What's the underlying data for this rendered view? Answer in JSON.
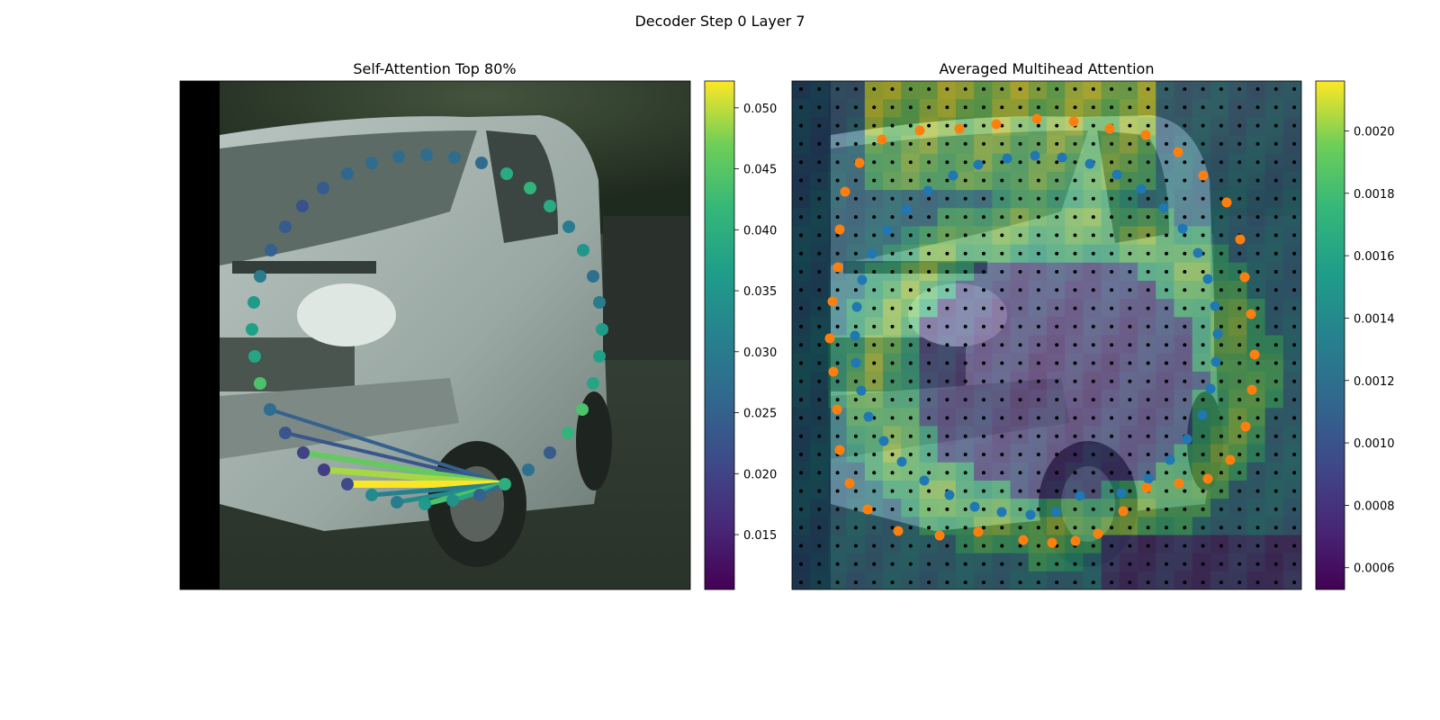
{
  "figure": {
    "suptitle": "Decoder Step 0 Layer 7"
  },
  "chart_data": [
    {
      "type": "scatter",
      "title": "Self-Attention Top 80%",
      "description_of_background": "photo of white van",
      "colormap": "viridis",
      "colorbar": {
        "min": 0.0105,
        "max": 0.0522,
        "ticks": [
          "0.015",
          "0.020",
          "0.025",
          "0.030",
          "0.035",
          "0.040",
          "0.045",
          "0.050"
        ],
        "tick_values": [
          0.015,
          0.02,
          0.025,
          0.03,
          0.035,
          0.04,
          0.045,
          0.05
        ]
      },
      "points": [
        {
          "x": 441,
          "y": 558,
          "v": 0.03
        },
        {
          "x": 472,
          "y": 560,
          "v": 0.036
        },
        {
          "x": 503,
          "y": 556,
          "v": 0.034
        },
        {
          "x": 533,
          "y": 550,
          "v": 0.025
        },
        {
          "x": 561,
          "y": 538,
          "v": 0.04
        },
        {
          "x": 587,
          "y": 522,
          "v": 0.028
        },
        {
          "x": 611,
          "y": 503,
          "v": 0.024
        },
        {
          "x": 631,
          "y": 481,
          "v": 0.041
        },
        {
          "x": 647,
          "y": 455,
          "v": 0.044
        },
        {
          "x": 659,
          "y": 426,
          "v": 0.038
        },
        {
          "x": 666,
          "y": 396,
          "v": 0.037
        },
        {
          "x": 669,
          "y": 366,
          "v": 0.036
        },
        {
          "x": 666,
          "y": 336,
          "v": 0.03
        },
        {
          "x": 659,
          "y": 307,
          "v": 0.028
        },
        {
          "x": 648,
          "y": 278,
          "v": 0.035
        },
        {
          "x": 632,
          "y": 252,
          "v": 0.03
        },
        {
          "x": 611,
          "y": 229,
          "v": 0.039
        },
        {
          "x": 589,
          "y": 209,
          "v": 0.041
        },
        {
          "x": 563,
          "y": 193,
          "v": 0.039
        },
        {
          "x": 535,
          "y": 181,
          "v": 0.027
        },
        {
          "x": 505,
          "y": 175,
          "v": 0.027
        },
        {
          "x": 474,
          "y": 172,
          "v": 0.027
        },
        {
          "x": 443,
          "y": 174,
          "v": 0.027
        },
        {
          "x": 413,
          "y": 181,
          "v": 0.027
        },
        {
          "x": 386,
          "y": 193,
          "v": 0.026
        },
        {
          "x": 359,
          "y": 209,
          "v": 0.024
        },
        {
          "x": 336,
          "y": 229,
          "v": 0.022
        },
        {
          "x": 317,
          "y": 252,
          "v": 0.024
        },
        {
          "x": 301,
          "y": 278,
          "v": 0.025
        },
        {
          "x": 289,
          "y": 307,
          "v": 0.03
        },
        {
          "x": 282,
          "y": 336,
          "v": 0.036
        },
        {
          "x": 280,
          "y": 366,
          "v": 0.037
        },
        {
          "x": 283,
          "y": 396,
          "v": 0.038
        },
        {
          "x": 289,
          "y": 426,
          "v": 0.044
        },
        {
          "x": 300,
          "y": 455,
          "v": 0.027
        },
        {
          "x": 317,
          "y": 481,
          "v": 0.023
        },
        {
          "x": 337,
          "y": 503,
          "v": 0.02
        },
        {
          "x": 360,
          "y": 522,
          "v": 0.019
        },
        {
          "x": 386,
          "y": 538,
          "v": 0.021
        },
        {
          "x": 413,
          "y": 550,
          "v": 0.033
        }
      ],
      "edges": [
        {
          "to": 34,
          "v": 0.025,
          "w": 4
        },
        {
          "to": 35,
          "v": 0.023,
          "w": 4
        },
        {
          "to": 36,
          "v": 0.046,
          "w": 6
        },
        {
          "to": 37,
          "v": 0.049,
          "w": 7
        },
        {
          "to": 38,
          "v": 0.052,
          "w": 8
        },
        {
          "to": 39,
          "v": 0.031,
          "w": 5
        },
        {
          "to": 0,
          "v": 0.033,
          "w": 5
        },
        {
          "to": 1,
          "v": 0.044,
          "w": 6
        },
        {
          "to": 2,
          "v": 0.038,
          "w": 5
        },
        {
          "to": 3,
          "v": 0.027,
          "w": 4
        }
      ],
      "edge_source": 4
    },
    {
      "type": "heatmap",
      "title": "Averaged Multihead Attention",
      "colormap": "viridis",
      "colorbar": {
        "min": 0.00053,
        "max": 0.00216,
        "ticks": [
          "0.0006",
          "0.0008",
          "0.0010",
          "0.0012",
          "0.0014",
          "0.0016",
          "0.0018",
          "0.0020"
        ],
        "tick_values": [
          0.0006,
          0.0008,
          0.001,
          0.0012,
          0.0014,
          0.0016,
          0.0018,
          0.002
        ]
      },
      "blue_points": [
        {
          "x": 1200,
          "y": 551
        },
        {
          "x": 1173,
          "y": 569
        },
        {
          "x": 1145,
          "y": 572
        },
        {
          "x": 1113,
          "y": 569
        },
        {
          "x": 1083,
          "y": 563
        },
        {
          "x": 1055,
          "y": 550
        },
        {
          "x": 1027,
          "y": 534
        },
        {
          "x": 1002,
          "y": 513
        },
        {
          "x": 982,
          "y": 490
        },
        {
          "x": 965,
          "y": 463
        },
        {
          "x": 957,
          "y": 434
        },
        {
          "x": 951,
          "y": 403
        },
        {
          "x": 950,
          "y": 373
        },
        {
          "x": 952,
          "y": 341
        },
        {
          "x": 958,
          "y": 311
        },
        {
          "x": 969,
          "y": 282
        },
        {
          "x": 986,
          "y": 256
        },
        {
          "x": 1007,
          "y": 233
        },
        {
          "x": 1031,
          "y": 212
        },
        {
          "x": 1059,
          "y": 195
        },
        {
          "x": 1087,
          "y": 183
        },
        {
          "x": 1119,
          "y": 176
        },
        {
          "x": 1150,
          "y": 173
        },
        {
          "x": 1180,
          "y": 175
        },
        {
          "x": 1211,
          "y": 182
        },
        {
          "x": 1241,
          "y": 194
        },
        {
          "x": 1268,
          "y": 210
        },
        {
          "x": 1293,
          "y": 231
        },
        {
          "x": 1314,
          "y": 254
        },
        {
          "x": 1331,
          "y": 281
        },
        {
          "x": 1342,
          "y": 310
        },
        {
          "x": 1350,
          "y": 340
        },
        {
          "x": 1353,
          "y": 371
        },
        {
          "x": 1351,
          "y": 402
        },
        {
          "x": 1345,
          "y": 432
        },
        {
          "x": 1336,
          "y": 461
        },
        {
          "x": 1319,
          "y": 488
        },
        {
          "x": 1300,
          "y": 511
        },
        {
          "x": 1276,
          "y": 532
        },
        {
          "x": 1246,
          "y": 548
        }
      ],
      "orange_points": [
        {
          "x": 1169,
          "y": 603
        },
        {
          "x": 1137,
          "y": 600
        },
        {
          "x": 1087,
          "y": 591
        },
        {
          "x": 1044,
          "y": 595
        },
        {
          "x": 998,
          "y": 590
        },
        {
          "x": 964,
          "y": 566
        },
        {
          "x": 944,
          "y": 537
        },
        {
          "x": 933,
          "y": 500
        },
        {
          "x": 930,
          "y": 455
        },
        {
          "x": 926,
          "y": 413
        },
        {
          "x": 922,
          "y": 376
        },
        {
          "x": 925,
          "y": 335
        },
        {
          "x": 931,
          "y": 297
        },
        {
          "x": 933,
          "y": 255
        },
        {
          "x": 939,
          "y": 213
        },
        {
          "x": 955,
          "y": 181
        },
        {
          "x": 980,
          "y": 155
        },
        {
          "x": 1022,
          "y": 145
        },
        {
          "x": 1066,
          "y": 143
        },
        {
          "x": 1107,
          "y": 138
        },
        {
          "x": 1152,
          "y": 132
        },
        {
          "x": 1193,
          "y": 135
        },
        {
          "x": 1233,
          "y": 143
        },
        {
          "x": 1273,
          "y": 150
        },
        {
          "x": 1309,
          "y": 169
        },
        {
          "x": 1337,
          "y": 195
        },
        {
          "x": 1363,
          "y": 225
        },
        {
          "x": 1378,
          "y": 266
        },
        {
          "x": 1383,
          "y": 308
        },
        {
          "x": 1390,
          "y": 349
        },
        {
          "x": 1394,
          "y": 394
        },
        {
          "x": 1391,
          "y": 433
        },
        {
          "x": 1384,
          "y": 474
        },
        {
          "x": 1367,
          "y": 511
        },
        {
          "x": 1342,
          "y": 532
        },
        {
          "x": 1310,
          "y": 537
        },
        {
          "x": 1274,
          "y": 542
        },
        {
          "x": 1248,
          "y": 568
        },
        {
          "x": 1220,
          "y": 593
        },
        {
          "x": 1195,
          "y": 601
        }
      ]
    }
  ]
}
